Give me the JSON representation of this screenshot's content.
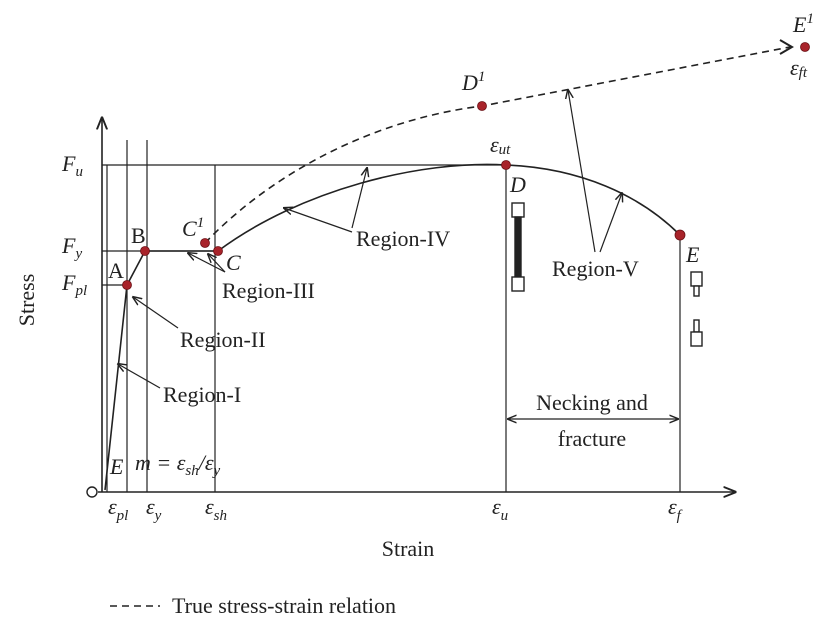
{
  "axis_labels": {
    "x": "Strain",
    "y": "Stress"
  },
  "stress_levels": [
    {
      "symbol": "F",
      "subscript": "u"
    },
    {
      "symbol": "F",
      "subscript": "y"
    },
    {
      "symbol": "F",
      "subscript": "pl"
    }
  ],
  "strain_levels": [
    {
      "symbol": "ε",
      "subscript": "pl"
    },
    {
      "symbol": "ε",
      "subscript": "y"
    },
    {
      "symbol": "ε",
      "subscript": "sh"
    },
    {
      "symbol": "ε",
      "subscript": "u"
    },
    {
      "symbol": "ε",
      "subscript": "f"
    }
  ],
  "points": [
    {
      "text": "A"
    },
    {
      "text": "B"
    },
    {
      "text": "C",
      "superscript": "1"
    },
    {
      "text": "C"
    },
    {
      "text": "D",
      "superscript": "1"
    },
    {
      "text": "D"
    },
    {
      "text": "E"
    },
    {
      "text": "E",
      "superscript": "1"
    }
  ],
  "ultimate_strain_label": {
    "symbol": "ε",
    "subscript": "ut"
  },
  "fracture_true_strain_label": {
    "symbol": "ε",
    "subscript": "ft"
  },
  "regions": [
    "Region-I",
    "Region-II",
    "Region-III",
    "Region-IV",
    "Region-V"
  ],
  "necking_label": [
    "Necking and",
    "fracture"
  ],
  "slope_label": {
    "lhs": "m = ε",
    "sub1": "sh",
    "mid": "/ε",
    "sub2": "y"
  },
  "modulus_label": "E",
  "legend": "True stress-strain relation"
}
